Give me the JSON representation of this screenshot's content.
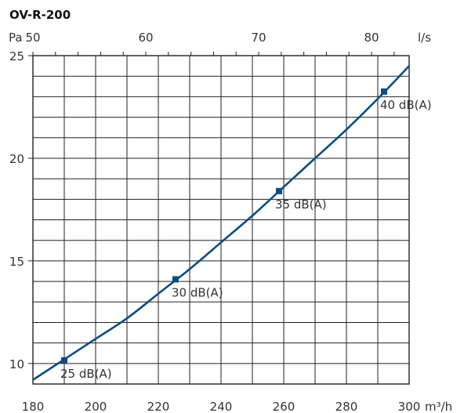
{
  "chart_data": {
    "type": "line",
    "title": "OV-R-200",
    "x_axis": {
      "unit": "m³/h",
      "range": [
        180,
        300
      ],
      "ticks": [
        "180",
        "200",
        "220",
        "240",
        "260",
        "280",
        "300"
      ],
      "tick_values": [
        180,
        200,
        220,
        240,
        260,
        280,
        300
      ]
    },
    "x2_axis": {
      "unit": "l/s",
      "range": [
        50,
        83.33
      ],
      "ticks": [
        "50",
        "60",
        "70",
        "80"
      ],
      "tick_values": [
        50,
        60,
        70,
        80
      ]
    },
    "y_axis": {
      "unit": "Pa",
      "range": [
        9,
        25
      ],
      "ticks": [
        "10",
        "15",
        "20",
        "25"
      ],
      "tick_values": [
        10,
        15,
        20,
        25
      ]
    },
    "grid": true,
    "series": [
      {
        "color": "#0d4d80",
        "x": [
          180,
          190,
          200,
          210,
          220,
          230,
          240,
          250,
          260,
          270,
          280,
          290,
          300
        ],
        "y": [
          9.2,
          10.2,
          11.2,
          12.2,
          13.4,
          14.6,
          15.9,
          17.2,
          18.6,
          20.0,
          21.4,
          22.9,
          24.5
        ]
      }
    ],
    "markers": [
      {
        "x": 190,
        "y": 10.15,
        "label": "25 dB(A)"
      },
      {
        "x": 225.5,
        "y": 14.1,
        "label": "30 dB(A)"
      },
      {
        "x": 258.5,
        "y": 18.4,
        "label": "35 dB(A)"
      },
      {
        "x": 292,
        "y": 23.25,
        "label": "40 dB(A)"
      }
    ],
    "colors": {
      "line": "#0d4d80",
      "grid": "#222222",
      "text": "#333333"
    }
  }
}
